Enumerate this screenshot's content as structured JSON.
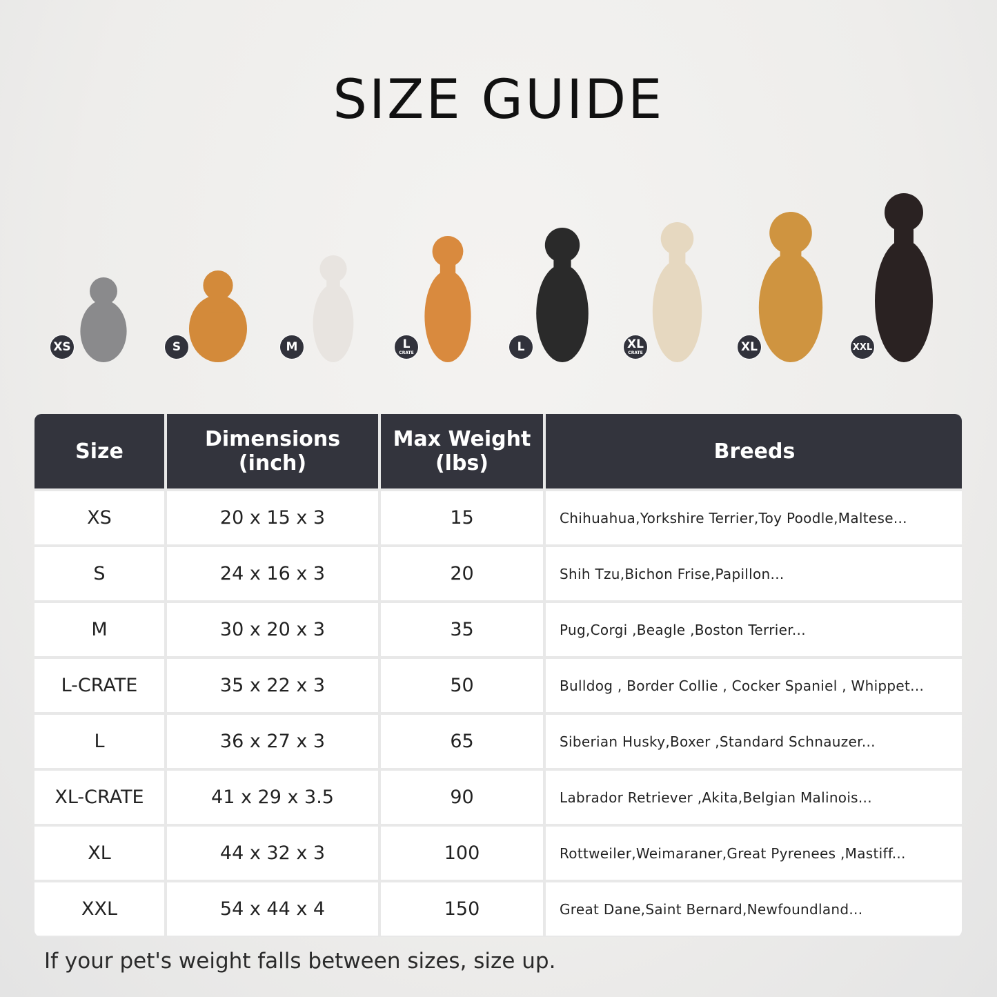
{
  "title": "SIZE GUIDE",
  "pets": [
    {
      "badge": "XS",
      "sub": "",
      "color": "#8a8a8c"
    },
    {
      "badge": "S",
      "sub": "",
      "color": "#d38a3a"
    },
    {
      "badge": "M",
      "sub": "",
      "color": "#e8e4e0"
    },
    {
      "badge": "L",
      "sub": "CRATE",
      "color": "#d98a3e"
    },
    {
      "badge": "L",
      "sub": "",
      "color": "#2a2a2a"
    },
    {
      "badge": "XL",
      "sub": "CRATE",
      "color": "#e6d8c0"
    },
    {
      "badge": "XL",
      "sub": "",
      "color": "#cf9440"
    },
    {
      "badge": "XXL",
      "sub": "",
      "color": "#2a2222"
    }
  ],
  "table": {
    "headers": [
      "Size",
      "Dimensions\n(inch)",
      "Max Weight\n(lbs)",
      "Breeds"
    ],
    "rows": [
      [
        "XS",
        "20 x 15 x 3",
        "15",
        "Chihuahua,Yorkshire Terrier,Toy Poodle,Maltese..."
      ],
      [
        "S",
        "24 x 16 x 3",
        "20",
        "Shih Tzu,Bichon Frise,Papillon..."
      ],
      [
        "M",
        "30 x 20 x 3",
        "35",
        "Pug,Corgi ,Beagle ,Boston Terrier..."
      ],
      [
        "L-CRATE",
        "35 x 22 x 3",
        "50",
        "Bulldog , Border Collie , Cocker Spaniel , Whippet..."
      ],
      [
        "L",
        "36 x 27 x 3",
        "65",
        "Siberian Husky,Boxer ,Standard Schnauzer..."
      ],
      [
        "XL-CRATE",
        "41 x 29 x 3.5",
        "90",
        "Labrador Retriever ,Akita,Belgian Malinois..."
      ],
      [
        "XL",
        "44 x 32 x 3",
        "100",
        "Rottweiler,Weimaraner,Great Pyrenees ,Mastiff..."
      ],
      [
        "XXL",
        "54 x 44 x 4",
        "150",
        "Great Dane,Saint Bernard,Newfoundland..."
      ]
    ]
  },
  "note": "If your pet's weight falls between sizes, size up."
}
